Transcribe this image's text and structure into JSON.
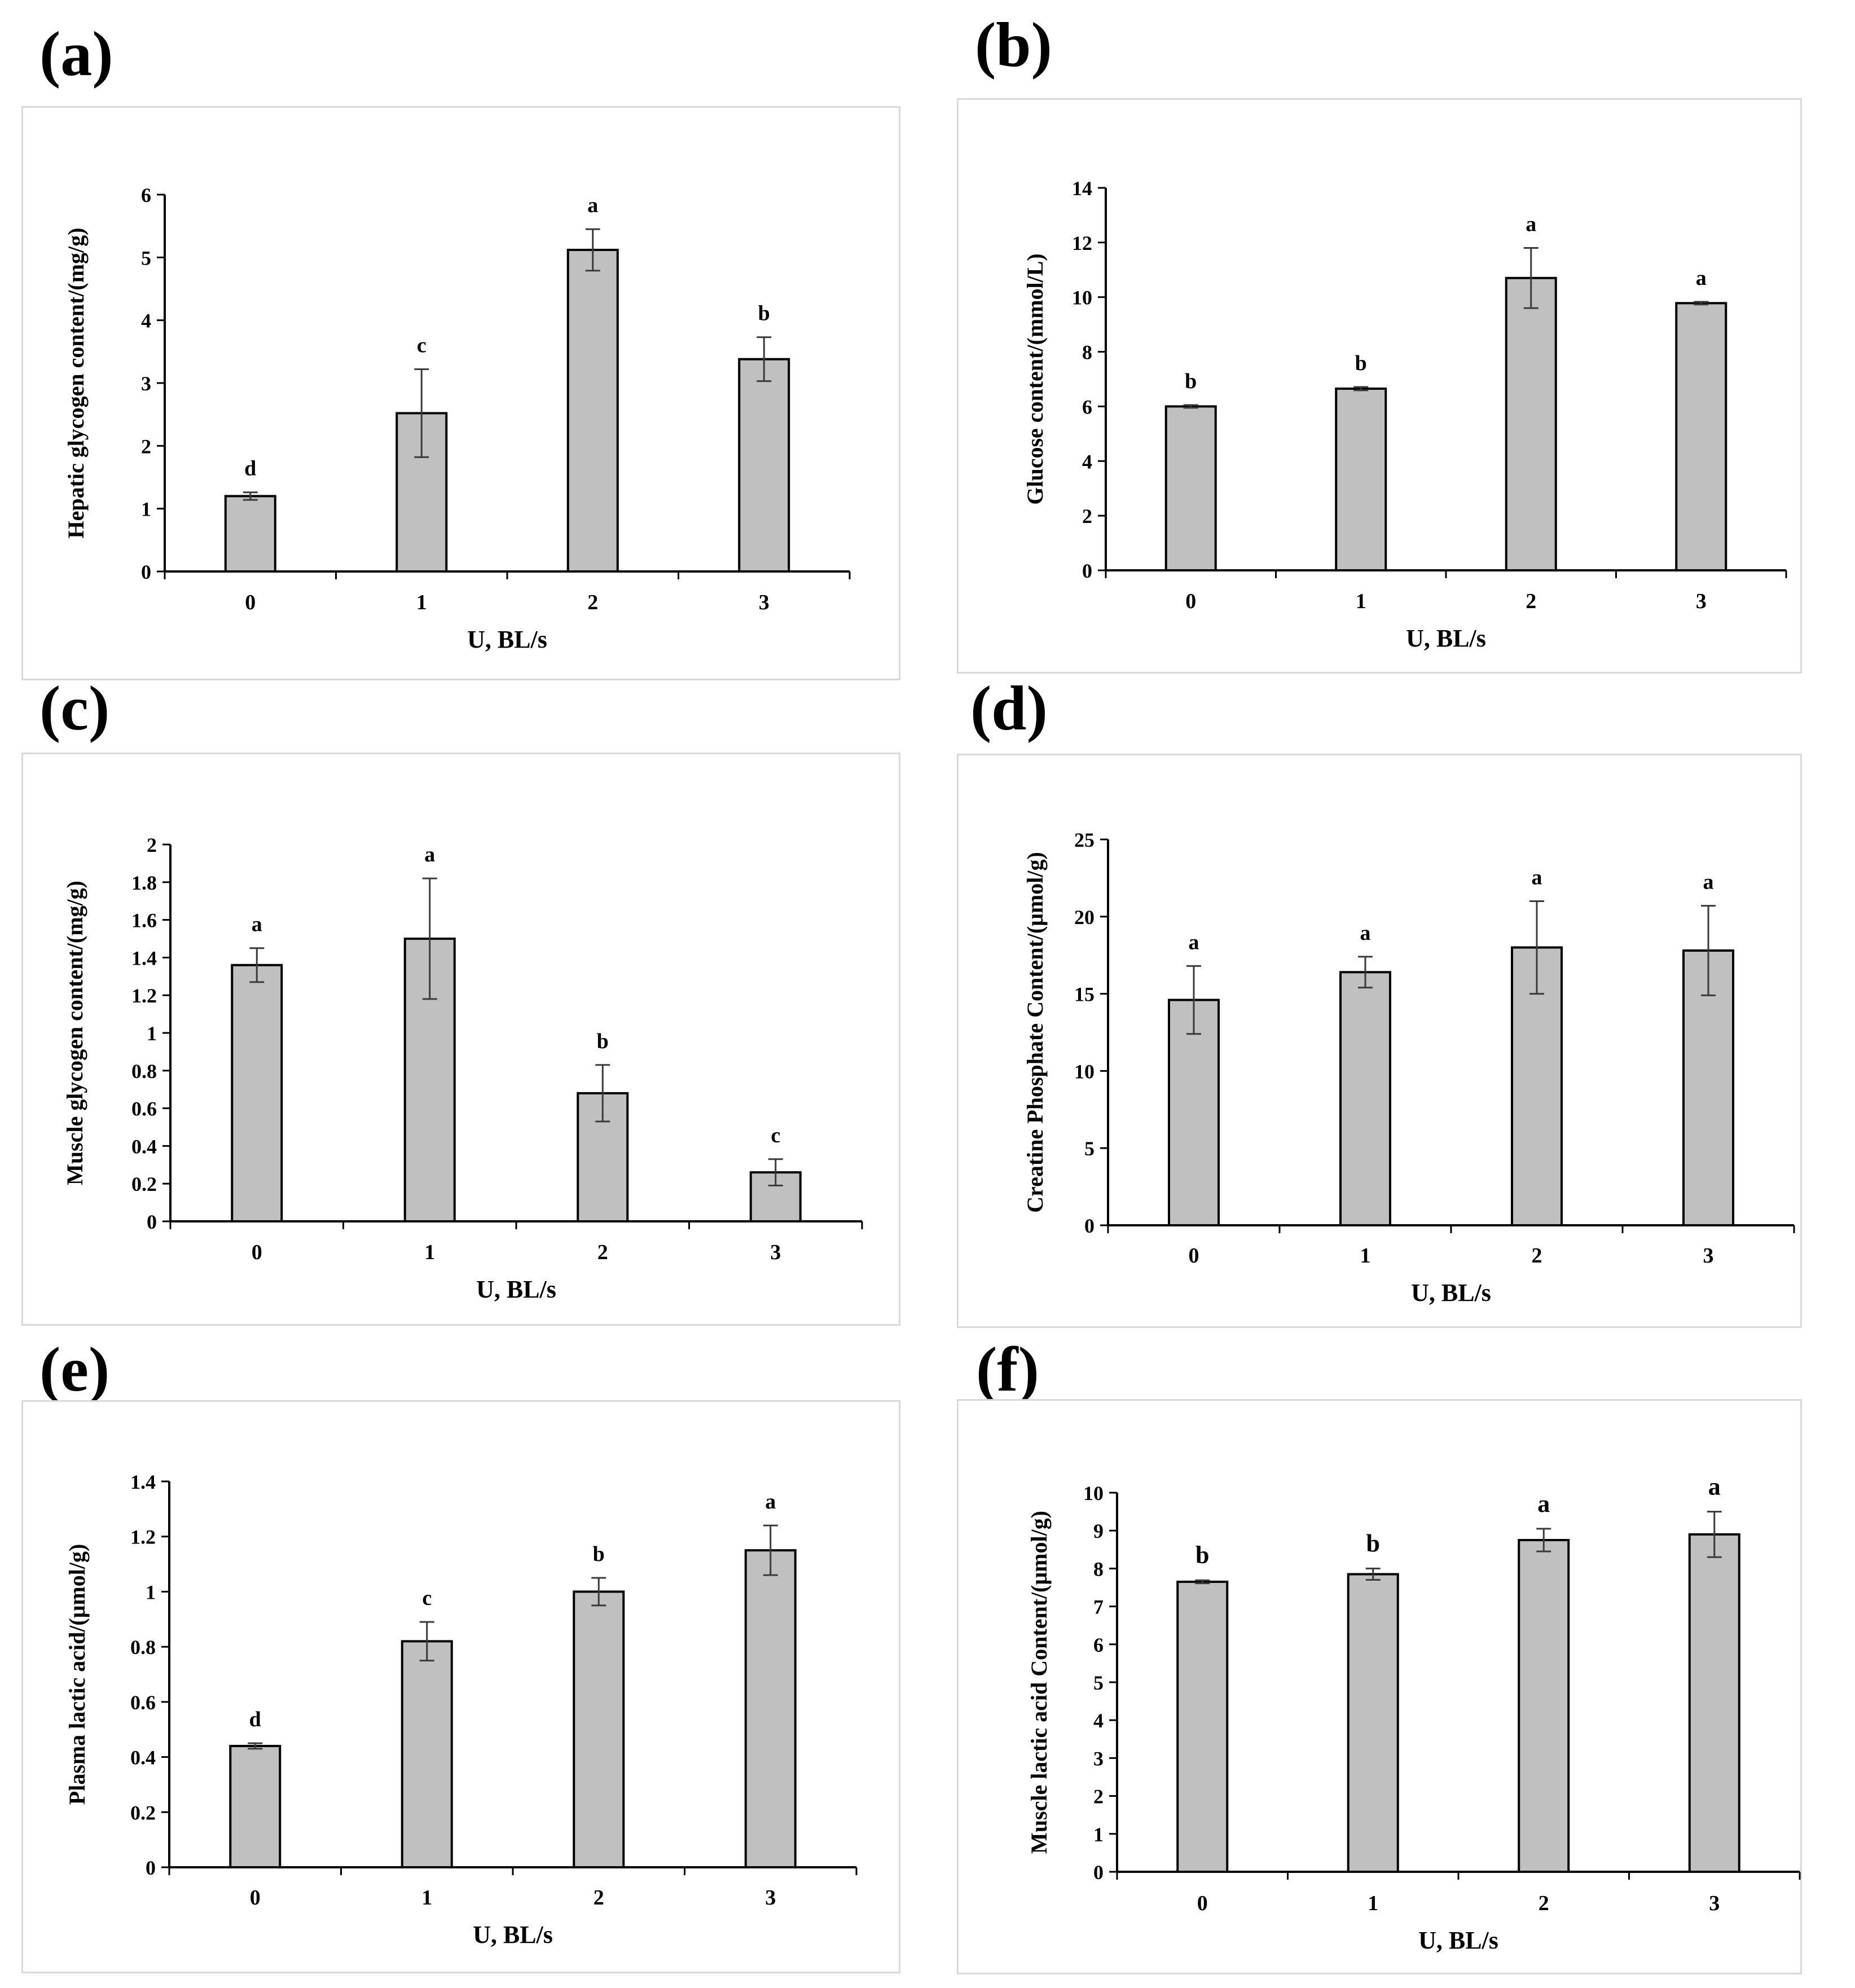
{
  "figure": {
    "background": "#ffffff",
    "bar_color": "#c0c0c0",
    "axis_color": "#000000",
    "frame_color": "#d9d9d9"
  },
  "chart_data": [
    {
      "panel": "(a)",
      "type": "bar",
      "categories": [
        "0",
        "1",
        "2",
        "3"
      ],
      "values": [
        1.2,
        2.52,
        5.12,
        3.38
      ],
      "errors": [
        0.06,
        0.7,
        0.33,
        0.35
      ],
      "letters": [
        "d",
        "c",
        "a",
        "b"
      ],
      "xlabel": "U, BL/s",
      "ylabel": "Hepatic glycogen content/(mg/g)",
      "ylim": [
        0,
        6
      ],
      "yticks": [
        {
          "v": 0,
          "t": "0"
        },
        {
          "v": 1,
          "t": "1"
        },
        {
          "v": 2,
          "t": "2"
        },
        {
          "v": 3,
          "t": "3"
        },
        {
          "v": 4,
          "t": "4"
        },
        {
          "v": 5,
          "t": "5"
        },
        {
          "v": 6,
          "t": "6"
        }
      ]
    },
    {
      "panel": "(b)",
      "type": "bar",
      "categories": [
        "0",
        "1",
        "2",
        "3"
      ],
      "values": [
        6.0,
        6.65,
        10.7,
        9.78
      ],
      "errors": [
        0.05,
        0.06,
        1.1,
        0.05
      ],
      "letters": [
        "b",
        "b",
        "a",
        "a"
      ],
      "xlabel": "U, BL/s",
      "ylabel": "Glucose content/(mmol/L)",
      "ylim": [
        0,
        14
      ],
      "yticks": [
        {
          "v": 0,
          "t": "0"
        },
        {
          "v": 2,
          "t": "2"
        },
        {
          "v": 4,
          "t": "4"
        },
        {
          "v": 6,
          "t": "6"
        },
        {
          "v": 8,
          "t": "8"
        },
        {
          "v": 10,
          "t": "10"
        },
        {
          "v": 12,
          "t": "12"
        },
        {
          "v": 14,
          "t": "14"
        }
      ]
    },
    {
      "panel": "(c)",
      "type": "bar",
      "categories": [
        "0",
        "1",
        "2",
        "3"
      ],
      "values": [
        1.36,
        1.5,
        0.68,
        0.26
      ],
      "errors": [
        0.09,
        0.32,
        0.15,
        0.07
      ],
      "letters": [
        "a",
        "a",
        "b",
        "c"
      ],
      "xlabel": "U, BL/s",
      "ylabel": "Muscle glycogen content/(mg/g)",
      "ylim": [
        0,
        2
      ],
      "yticks": [
        {
          "v": 0,
          "t": "0"
        },
        {
          "v": 0.2,
          "t": "0.2"
        },
        {
          "v": 0.4,
          "t": "0.4"
        },
        {
          "v": 0.6,
          "t": "0.6"
        },
        {
          "v": 0.8,
          "t": "0.8"
        },
        {
          "v": 1,
          "t": "1"
        },
        {
          "v": 1.2,
          "t": "1.2"
        },
        {
          "v": 1.4,
          "t": "1.4"
        },
        {
          "v": 1.6,
          "t": "1.6"
        },
        {
          "v": 1.8,
          "t": "1.8"
        },
        {
          "v": 2,
          "t": "2"
        }
      ]
    },
    {
      "panel": "(d)",
      "type": "bar",
      "categories": [
        "0",
        "1",
        "2",
        "3"
      ],
      "values": [
        14.6,
        16.4,
        18.0,
        17.8
      ],
      "errors": [
        2.2,
        1.0,
        3.0,
        2.9
      ],
      "letters": [
        "a",
        "a",
        "a",
        "a"
      ],
      "xlabel": "U, BL/s",
      "ylabel": "Creatine Phosphate Content/(μmol/g)",
      "ylim": [
        0,
        25
      ],
      "yticks": [
        {
          "v": 0,
          "t": "0"
        },
        {
          "v": 5,
          "t": "5"
        },
        {
          "v": 10,
          "t": "10"
        },
        {
          "v": 15,
          "t": "15"
        },
        {
          "v": 20,
          "t": "20"
        },
        {
          "v": 25,
          "t": "25"
        }
      ]
    },
    {
      "panel": "(e)",
      "type": "bar",
      "categories": [
        "0",
        "1",
        "2",
        "3"
      ],
      "values": [
        0.44,
        0.82,
        1.0,
        1.15
      ],
      "errors": [
        0.01,
        0.07,
        0.05,
        0.09
      ],
      "letters": [
        "d",
        "c",
        "b",
        "a"
      ],
      "xlabel": "U, BL/s",
      "ylabel": "Plasma lactic acid/(μmol/g)",
      "ylim": [
        0,
        1.4
      ],
      "yticks": [
        {
          "v": 0,
          "t": "0"
        },
        {
          "v": 0.2,
          "t": "0.2"
        },
        {
          "v": 0.4,
          "t": "0.4"
        },
        {
          "v": 0.6,
          "t": "0.6"
        },
        {
          "v": 0.8,
          "t": "0.8"
        },
        {
          "v": 1,
          "t": "1"
        },
        {
          "v": 1.2,
          "t": "1.2"
        },
        {
          "v": 1.4,
          "t": "1.4"
        }
      ]
    },
    {
      "panel": "(f)",
      "type": "bar",
      "categories": [
        "0",
        "1",
        "2",
        "3"
      ],
      "values": [
        7.65,
        7.85,
        8.75,
        8.9
      ],
      "errors": [
        0.04,
        0.15,
        0.3,
        0.6
      ],
      "letters": [
        "b",
        "b",
        "a",
        "a"
      ],
      "xlabel": "U, BL/s",
      "ylabel": "Muscle lactic acid Content/(μmol/g)",
      "ylim": [
        0,
        10
      ],
      "yticks": [
        {
          "v": 0,
          "t": "0"
        },
        {
          "v": 1,
          "t": "1"
        },
        {
          "v": 2,
          "t": "2"
        },
        {
          "v": 3,
          "t": "3"
        },
        {
          "v": 4,
          "t": "4"
        },
        {
          "v": 5,
          "t": "5"
        },
        {
          "v": 6,
          "t": "6"
        },
        {
          "v": 7,
          "t": "7"
        },
        {
          "v": 8,
          "t": "8"
        },
        {
          "v": 9,
          "t": "9"
        },
        {
          "v": 10,
          "t": "10"
        }
      ]
    }
  ]
}
